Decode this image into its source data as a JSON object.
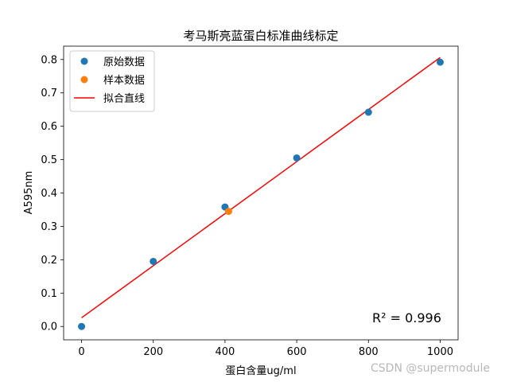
{
  "chart_data": {
    "type": "scatter",
    "title": "考马斯亮蓝蛋白标准曲线标定",
    "xlabel": "蛋白含量ug/ml",
    "ylabel": "A595nm",
    "xlim": [
      -50,
      1050
    ],
    "ylim": [
      -0.04,
      0.84
    ],
    "xticks": [
      0,
      200,
      400,
      600,
      800,
      1000
    ],
    "yticks": [
      0.0,
      0.1,
      0.2,
      0.3,
      0.4,
      0.5,
      0.6,
      0.7,
      0.8
    ],
    "xtick_labels": [
      "0",
      "200",
      "400",
      "600",
      "800",
      "1000"
    ],
    "ytick_labels": [
      "0.0",
      "0.1",
      "0.2",
      "0.3",
      "0.4",
      "0.5",
      "0.6",
      "0.7",
      "0.8"
    ],
    "grid": false,
    "legend_position": "top-left",
    "series": [
      {
        "name": "原始数据",
        "kind": "scatter",
        "color": "#1f77b4",
        "x": [
          0,
          200,
          400,
          600,
          800,
          1000
        ],
        "y": [
          0.0,
          0.195,
          0.358,
          0.505,
          0.642,
          0.792
        ]
      },
      {
        "name": "样本数据",
        "kind": "scatter",
        "color": "#ff7f0e",
        "x": [
          410
        ],
        "y": [
          0.345
        ]
      },
      {
        "name": "拟合直线",
        "kind": "line",
        "color": "#ff0000",
        "x": [
          0,
          1000
        ],
        "y": [
          0.026,
          0.806
        ]
      }
    ],
    "annotation": "R² = 0.996"
  },
  "watermark": "CSDN @supermodule"
}
